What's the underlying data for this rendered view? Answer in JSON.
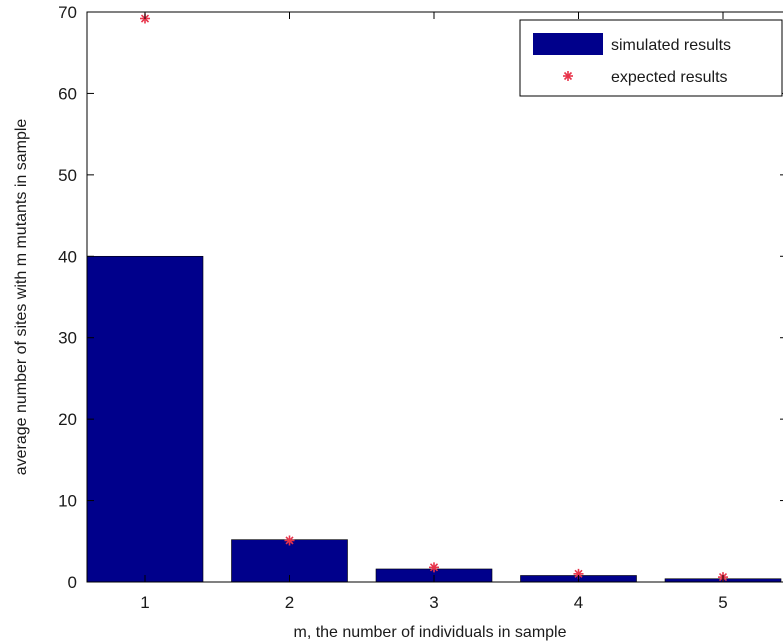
{
  "chart_data": {
    "type": "bar",
    "xlabel": "m, the number of individuals in sample",
    "ylabel": "average number of sites with m mutants in sample",
    "categories": [
      "1",
      "2",
      "3",
      "4",
      "5"
    ],
    "ylim": [
      0,
      70
    ],
    "yticks": [
      0,
      10,
      20,
      30,
      40,
      50,
      60,
      70
    ],
    "grid": false,
    "legend_position": "top-right",
    "series": [
      {
        "name": "simulated results",
        "kind": "bar",
        "color": "#00008b",
        "values": [
          40,
          5.2,
          1.6,
          0.8,
          0.4
        ]
      },
      {
        "name": "expected results",
        "kind": "marker",
        "marker": "star",
        "color": "#e8334a",
        "values": [
          69.2,
          5.1,
          1.8,
          1.0,
          0.6
        ]
      }
    ]
  }
}
